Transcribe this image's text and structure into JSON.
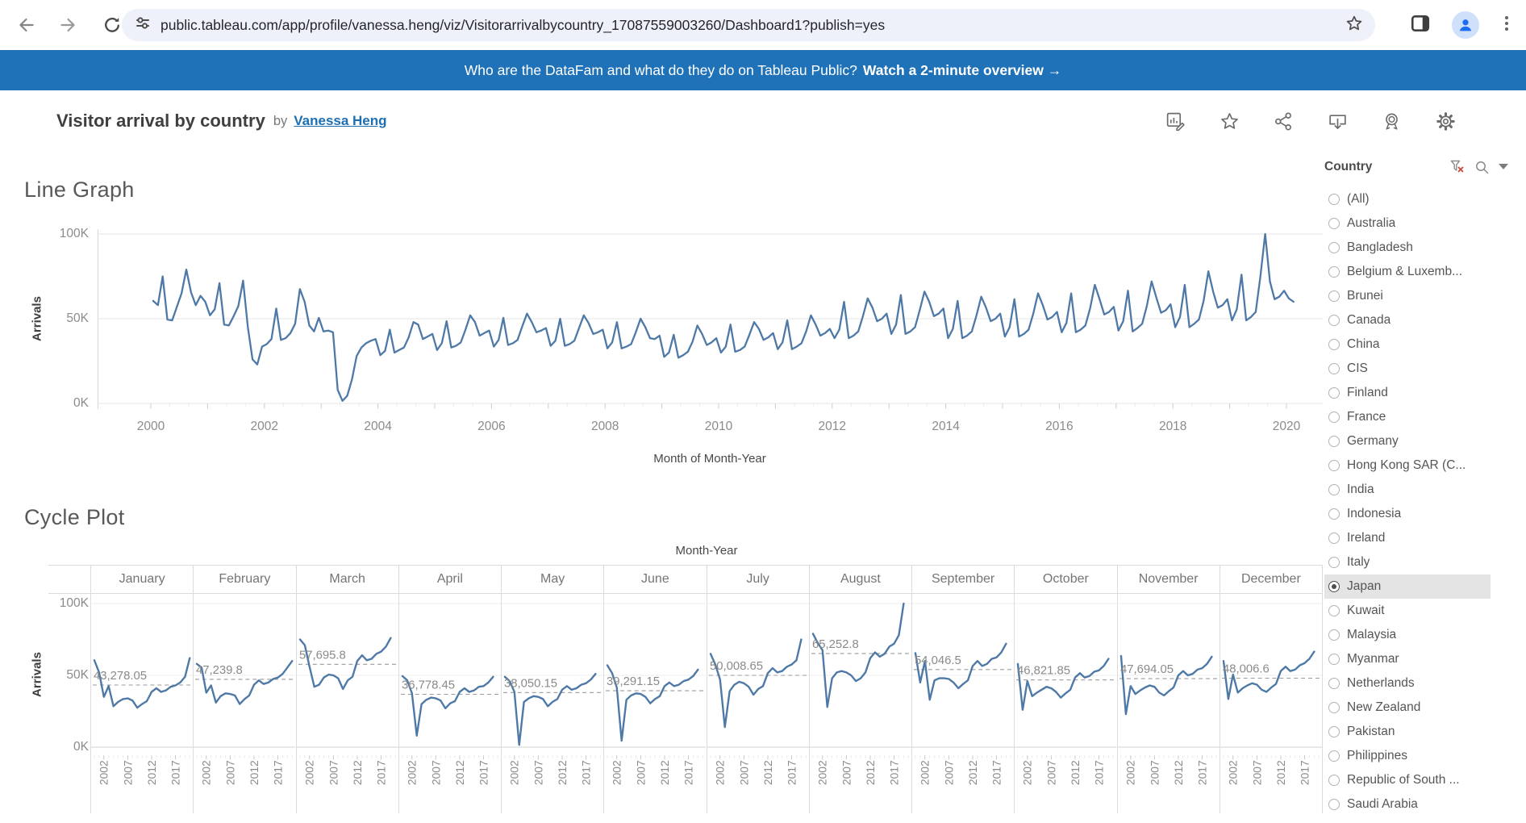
{
  "browser": {
    "url": "public.tableau.com/app/profile/vanessa.heng/viz/Visitorarrivalbycountry_17087559003260/Dashboard1?publish=yes"
  },
  "banner": {
    "text": "Who are the DataFam and what do they do on Tableau Public?",
    "cta": "Watch a 2-minute overview →"
  },
  "viz_header": {
    "title": "Visitor arrival by country",
    "byline": "by",
    "author": "Vanessa Heng"
  },
  "filter": {
    "title": "Country",
    "selected": "Japan",
    "options": [
      "(All)",
      "Australia",
      "Bangladesh",
      "Belgium & Luxemb...",
      "Brunei",
      "Canada",
      "China",
      "CIS",
      "Finland",
      "France",
      "Germany",
      "Hong Kong SAR (C...",
      "India",
      "Indonesia",
      "Ireland",
      "Italy",
      "Japan",
      "Kuwait",
      "Malaysia",
      "Myanmar",
      "Netherlands",
      "New Zealand",
      "Pakistan",
      "Philippines",
      "Republic of South ...",
      "Saudi Arabia"
    ]
  },
  "colors": {
    "banner_blue": "#1f72b8",
    "link_blue": "#1a6fb5",
    "line_blue": "#4e79a7",
    "avg_dash_gray": "#9a9a9a"
  },
  "chart_data": [
    {
      "type": "line",
      "title": "Line Graph",
      "xlabel": "Month of Month-Year",
      "ylabel": "Arrivals",
      "x_ticks": [
        "2000",
        "2002",
        "2004",
        "2006",
        "2008",
        "2010",
        "2012",
        "2014",
        "2016",
        "2018",
        "2020"
      ],
      "y_ticks": [
        "0K",
        "50K",
        "100K"
      ],
      "ylim_thousands": [
        0,
        100
      ],
      "unit": "monthly visitor arrivals, thousands",
      "monthly_arrivals_thousands_by_year": {
        "2000": [
          60.5,
          58,
          75,
          49.5,
          49,
          57,
          65,
          79,
          65.5,
          58,
          63.5,
          60
        ],
        "2001": [
          52,
          55.5,
          71,
          46.5,
          46,
          51.5,
          57.5,
          72.5,
          45,
          26,
          23,
          33.5
        ],
        "2002": [
          35,
          38,
          56,
          37.5,
          38.5,
          41.5,
          47,
          67.5,
          60,
          46,
          42.5,
          50.5
        ],
        "2003": [
          42.5,
          43,
          42,
          8,
          1.5,
          4.5,
          14,
          28,
          33,
          35.5,
          37,
          38
        ],
        "2004": [
          28.5,
          31,
          43.5,
          30,
          31.5,
          33,
          39,
          48,
          46.5,
          38,
          39.5,
          41
        ],
        "2005": [
          31.5,
          35.5,
          48.5,
          33,
          34,
          36,
          43.5,
          52,
          48,
          40,
          41.5,
          43
        ],
        "2006": [
          33.5,
          37.5,
          50.5,
          34.5,
          35.5,
          37.5,
          45.5,
          53,
          48,
          42,
          43,
          44.5
        ],
        "2007": [
          34,
          37,
          50,
          34,
          35,
          37,
          44.5,
          52,
          47.5,
          41,
          42,
          43.5
        ],
        "2008": [
          32.5,
          36,
          48,
          32.5,
          33.5,
          35,
          42,
          50,
          45,
          38.5,
          38,
          40
        ],
        "2009": [
          27.5,
          30,
          40.5,
          27,
          28.5,
          30.5,
          36.5,
          46,
          41,
          34.5,
          36,
          38.5
        ],
        "2010": [
          30,
          33.5,
          46.5,
          30.5,
          31.5,
          33.5,
          40.5,
          48,
          44,
          37.5,
          39,
          41.5
        ],
        "2011": [
          32,
          36,
          49,
          32,
          33.5,
          35.5,
          42.5,
          52,
          46.5,
          40,
          41.5,
          44
        ],
        "2012": [
          38.5,
          43.5,
          60,
          38.5,
          40,
          42.5,
          51.5,
          62,
          56.5,
          48.5,
          50,
          53
        ],
        "2013": [
          41,
          46.5,
          64,
          41,
          42.5,
          45,
          55,
          66,
          60,
          51.5,
          53,
          56
        ],
        "2014": [
          38.5,
          44,
          60.5,
          38.5,
          40,
          42.5,
          52,
          63,
          56.5,
          48.5,
          50,
          53
        ],
        "2015": [
          39.5,
          45,
          61.5,
          39.5,
          41,
          43.5,
          53,
          65,
          58,
          49.5,
          51,
          54
        ],
        "2016": [
          42,
          47.5,
          65,
          42,
          43.5,
          46,
          56,
          70,
          61.5,
          52.5,
          54,
          57
        ],
        "2017": [
          43,
          48.5,
          66.5,
          42.5,
          44.5,
          47,
          57.5,
          72,
          62.5,
          53.5,
          55,
          58.5
        ],
        "2018": [
          45,
          51,
          70,
          45,
          47,
          49.5,
          60.5,
          78,
          66,
          56.5,
          58,
          61.5
        ],
        "2019": [
          49,
          55.5,
          76,
          49,
          51,
          54,
          75,
          100,
          72,
          61.5,
          63,
          66.5
        ],
        "2020": [
          62,
          60
        ]
      }
    },
    {
      "type": "line-cycle",
      "title": "Cycle Plot",
      "top_axis_label": "Month-Year",
      "ylabel": "Arrivals",
      "months": [
        "January",
        "February",
        "March",
        "April",
        "May",
        "June",
        "July",
        "August",
        "September",
        "October",
        "November",
        "December"
      ],
      "month_average_labels": [
        "43,278.05",
        "47,239.8",
        "57,695.8",
        "36,778.45",
        "38,050.15",
        "39,291.15",
        "50,008.65",
        "65,252.8",
        "54,046.5",
        "46,821.85",
        "47,694.05",
        "48,006.6"
      ],
      "month_averages": [
        43278.05,
        47239.8,
        57695.8,
        36778.45,
        38050.15,
        39291.15,
        50008.65,
        65252.8,
        54046.5,
        46821.85,
        47694.05,
        48006.6
      ],
      "year_ticks": [
        "2002",
        "2007",
        "2012",
        "2017"
      ],
      "y_ticks": [
        "0K",
        "50K",
        "100K"
      ],
      "note": "panels reuse monthly_arrivals_thousands_by_year from the line chart"
    }
  ]
}
